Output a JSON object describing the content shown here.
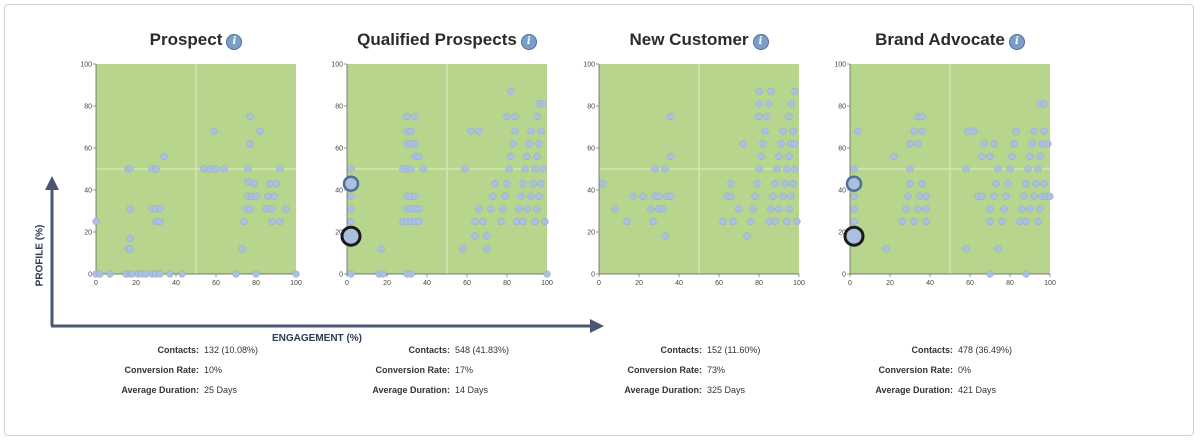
{
  "x_axis_title": "ENGAGEMENT (%)",
  "y_axis_title": "PROFILE (%)",
  "stat_labels": {
    "contacts": "Contacts:",
    "conversion": "Conversion Rate:",
    "duration": "Average Duration:"
  },
  "colors": {
    "plot_bg": "#b7d58c",
    "point": "#a9c1df",
    "point_stroke": "#8fa8c8",
    "arrow": "#4b5671",
    "info": "#7a9ec7"
  },
  "chart_data": [
    {
      "type": "scatter",
      "title": "Prospect",
      "xlim": [
        0,
        100
      ],
      "ylim": [
        0,
        100
      ],
      "xticks": [
        0,
        20,
        40,
        60,
        80,
        100
      ],
      "yticks": [
        0,
        20,
        40,
        60,
        80,
        100
      ],
      "stats": {
        "contacts": "132 (10.08%)",
        "conversion": "10%",
        "duration": "25 Days"
      },
      "points": [
        [
          0,
          25
        ],
        [
          0,
          0
        ],
        [
          2,
          0
        ],
        [
          7,
          0
        ],
        [
          15,
          0
        ],
        [
          16,
          50
        ],
        [
          17,
          50
        ],
        [
          16,
          12
        ],
        [
          17,
          12
        ],
        [
          17,
          17
        ],
        [
          17,
          31
        ],
        [
          15,
          0
        ],
        [
          17,
          0
        ],
        [
          18,
          0
        ],
        [
          21,
          0
        ],
        [
          23,
          0
        ],
        [
          25,
          0
        ],
        [
          28,
          0
        ],
        [
          30,
          0
        ],
        [
          32,
          0
        ],
        [
          28,
          31
        ],
        [
          30,
          31
        ],
        [
          32,
          31
        ],
        [
          30,
          25
        ],
        [
          32,
          25
        ],
        [
          28,
          50
        ],
        [
          30,
          50
        ],
        [
          34,
          56
        ],
        [
          37,
          0
        ],
        [
          43,
          0
        ],
        [
          54,
          50
        ],
        [
          57,
          50
        ],
        [
          60,
          50
        ],
        [
          64,
          50
        ],
        [
          59,
          68
        ],
        [
          73,
          12
        ],
        [
          74,
          25
        ],
        [
          75,
          31
        ],
        [
          76,
          37
        ],
        [
          77,
          31
        ],
        [
          78,
          37
        ],
        [
          79,
          43
        ],
        [
          80,
          37
        ],
        [
          76,
          44
        ],
        [
          76,
          50
        ],
        [
          77,
          62
        ],
        [
          77,
          75
        ],
        [
          80,
          0
        ],
        [
          82,
          68
        ],
        [
          85,
          31
        ],
        [
          86,
          37
        ],
        [
          87,
          43
        ],
        [
          88,
          25
        ],
        [
          88,
          31
        ],
        [
          89,
          37
        ],
        [
          90,
          43
        ],
        [
          92,
          25
        ],
        [
          92,
          50
        ],
        [
          95,
          31
        ],
        [
          100,
          0
        ],
        [
          70,
          0
        ]
      ]
    },
    {
      "type": "scatter",
      "title": "Qualified Prospects",
      "xlim": [
        0,
        100
      ],
      "ylim": [
        0,
        100
      ],
      "xticks": [
        0,
        20,
        40,
        60,
        80,
        100
      ],
      "yticks": [
        0,
        20,
        40,
        60,
        80,
        100
      ],
      "stats": {
        "contacts": "548 (41.83%)",
        "conversion": "17%",
        "duration": "14 Days"
      },
      "highlight": [
        {
          "x": 2,
          "y": 43,
          "r": 7
        },
        {
          "x": 2,
          "y": 18,
          "r": 9
        }
      ],
      "points": [
        [
          2,
          50
        ],
        [
          2,
          37
        ],
        [
          2,
          31
        ],
        [
          2,
          25
        ],
        [
          4,
          18
        ],
        [
          2,
          0
        ],
        [
          16,
          0
        ],
        [
          18,
          0
        ],
        [
          30,
          0
        ],
        [
          32,
          0
        ],
        [
          17,
          12
        ],
        [
          28,
          25
        ],
        [
          30,
          25
        ],
        [
          32,
          25
        ],
        [
          34,
          25
        ],
        [
          36,
          25
        ],
        [
          30,
          31
        ],
        [
          32,
          31
        ],
        [
          34,
          31
        ],
        [
          36,
          31
        ],
        [
          30,
          37
        ],
        [
          32,
          37
        ],
        [
          34,
          37
        ],
        [
          28,
          50
        ],
        [
          30,
          50
        ],
        [
          32,
          50
        ],
        [
          34,
          56
        ],
        [
          36,
          56
        ],
        [
          38,
          50
        ],
        [
          30,
          62
        ],
        [
          32,
          62
        ],
        [
          34,
          62
        ],
        [
          30,
          68
        ],
        [
          32,
          68
        ],
        [
          30,
          75
        ],
        [
          34,
          75
        ],
        [
          58,
          12
        ],
        [
          59,
          50
        ],
        [
          64,
          18
        ],
        [
          64,
          25
        ],
        [
          66,
          31
        ],
        [
          68,
          25
        ],
        [
          70,
          12
        ],
        [
          70,
          18
        ],
        [
          72,
          31
        ],
        [
          73,
          37
        ],
        [
          74,
          43
        ],
        [
          62,
          68
        ],
        [
          66,
          68
        ],
        [
          77,
          25
        ],
        [
          78,
          31
        ],
        [
          79,
          37
        ],
        [
          80,
          43
        ],
        [
          81,
          50
        ],
        [
          82,
          56
        ],
        [
          83,
          62
        ],
        [
          84,
          68
        ],
        [
          80,
          75
        ],
        [
          82,
          87
        ],
        [
          84,
          75
        ],
        [
          85,
          25
        ],
        [
          86,
          31
        ],
        [
          87,
          37
        ],
        [
          88,
          43
        ],
        [
          89,
          50
        ],
        [
          90,
          56
        ],
        [
          91,
          62
        ],
        [
          92,
          68
        ],
        [
          88,
          25
        ],
        [
          90,
          31
        ],
        [
          92,
          37
        ],
        [
          93,
          43
        ],
        [
          94,
          50
        ],
        [
          95,
          56
        ],
        [
          96,
          62
        ],
        [
          97,
          68
        ],
        [
          94,
          25
        ],
        [
          95,
          31
        ],
        [
          96,
          37
        ],
        [
          97,
          43
        ],
        [
          98,
          50
        ],
        [
          95,
          75
        ],
        [
          96,
          81
        ],
        [
          98,
          81
        ],
        [
          99,
          25
        ],
        [
          100,
          0
        ]
      ]
    },
    {
      "type": "scatter",
      "title": "New Customer",
      "xlim": [
        0,
        100
      ],
      "ylim": [
        0,
        100
      ],
      "xticks": [
        0,
        20,
        40,
        60,
        80,
        100
      ],
      "yticks": [
        0,
        20,
        40,
        60,
        80,
        100
      ],
      "stats": {
        "contacts": "152 (11.60%)",
        "conversion": "73%",
        "duration": "325 Days"
      },
      "points": [
        [
          2,
          43
        ],
        [
          8,
          31
        ],
        [
          14,
          25
        ],
        [
          17,
          37
        ],
        [
          22,
          37
        ],
        [
          26,
          31
        ],
        [
          27,
          25
        ],
        [
          28,
          37
        ],
        [
          30,
          31
        ],
        [
          30,
          37
        ],
        [
          32,
          31
        ],
        [
          33,
          18
        ],
        [
          34,
          37
        ],
        [
          36,
          37
        ],
        [
          28,
          50
        ],
        [
          33,
          50
        ],
        [
          36,
          56
        ],
        [
          36,
          75
        ],
        [
          62,
          25
        ],
        [
          64,
          37
        ],
        [
          66,
          37
        ],
        [
          66,
          43
        ],
        [
          67,
          25
        ],
        [
          70,
          31
        ],
        [
          74,
          18
        ],
        [
          76,
          25
        ],
        [
          77,
          31
        ],
        [
          78,
          37
        ],
        [
          79,
          43
        ],
        [
          80,
          50
        ],
        [
          81,
          56
        ],
        [
          82,
          62
        ],
        [
          83,
          68
        ],
        [
          80,
          75
        ],
        [
          80,
          81
        ],
        [
          80,
          87
        ],
        [
          84,
          75
        ],
        [
          85,
          81
        ],
        [
          86,
          87
        ],
        [
          85,
          25
        ],
        [
          86,
          31
        ],
        [
          87,
          37
        ],
        [
          88,
          43
        ],
        [
          89,
          50
        ],
        [
          90,
          56
        ],
        [
          91,
          62
        ],
        [
          92,
          68
        ],
        [
          88,
          25
        ],
        [
          90,
          31
        ],
        [
          92,
          37
        ],
        [
          93,
          43
        ],
        [
          94,
          50
        ],
        [
          95,
          56
        ],
        [
          96,
          62
        ],
        [
          97,
          68
        ],
        [
          94,
          25
        ],
        [
          95,
          31
        ],
        [
          96,
          37
        ],
        [
          97,
          43
        ],
        [
          98,
          50
        ],
        [
          95,
          75
        ],
        [
          96,
          81
        ],
        [
          98,
          87
        ],
        [
          98,
          62
        ],
        [
          99,
          25
        ],
        [
          72,
          62
        ]
      ]
    },
    {
      "type": "scatter",
      "title": "Brand Advocate",
      "xlim": [
        0,
        100
      ],
      "ylim": [
        0,
        100
      ],
      "xticks": [
        0,
        20,
        40,
        60,
        80,
        100
      ],
      "yticks": [
        0,
        20,
        40,
        60,
        80,
        100
      ],
      "stats": {
        "contacts": "478 (36.49%)",
        "conversion": "0%",
        "duration": "421 Days"
      },
      "highlight": [
        {
          "x": 2,
          "y": 43,
          "r": 7
        },
        {
          "x": 2,
          "y": 18,
          "r": 9
        }
      ],
      "points": [
        [
          2,
          50
        ],
        [
          2,
          37
        ],
        [
          2,
          31
        ],
        [
          2,
          25
        ],
        [
          4,
          68
        ],
        [
          18,
          12
        ],
        [
          22,
          56
        ],
        [
          26,
          25
        ],
        [
          28,
          31
        ],
        [
          29,
          37
        ],
        [
          30,
          43
        ],
        [
          30,
          50
        ],
        [
          30,
          62
        ],
        [
          32,
          25
        ],
        [
          34,
          31
        ],
        [
          35,
          37
        ],
        [
          36,
          43
        ],
        [
          32,
          68
        ],
        [
          34,
          62
        ],
        [
          36,
          68
        ],
        [
          34,
          75
        ],
        [
          36,
          75
        ],
        [
          38,
          25
        ],
        [
          38,
          31
        ],
        [
          38,
          37
        ],
        [
          58,
          12
        ],
        [
          58,
          50
        ],
        [
          59,
          68
        ],
        [
          62,
          68
        ],
        [
          64,
          37
        ],
        [
          66,
          37
        ],
        [
          66,
          56
        ],
        [
          67,
          62
        ],
        [
          70,
          25
        ],
        [
          70,
          31
        ],
        [
          72,
          37
        ],
        [
          73,
          43
        ],
        [
          74,
          50
        ],
        [
          70,
          56
        ],
        [
          72,
          62
        ],
        [
          74,
          12
        ],
        [
          76,
          25
        ],
        [
          77,
          31
        ],
        [
          78,
          37
        ],
        [
          79,
          43
        ],
        [
          80,
          50
        ],
        [
          81,
          56
        ],
        [
          82,
          62
        ],
        [
          83,
          68
        ],
        [
          85,
          25
        ],
        [
          86,
          31
        ],
        [
          87,
          37
        ],
        [
          88,
          43
        ],
        [
          89,
          50
        ],
        [
          90,
          56
        ],
        [
          91,
          62
        ],
        [
          92,
          68
        ],
        [
          88,
          25
        ],
        [
          90,
          31
        ],
        [
          92,
          37
        ],
        [
          93,
          43
        ],
        [
          94,
          50
        ],
        [
          95,
          56
        ],
        [
          96,
          62
        ],
        [
          97,
          68
        ],
        [
          94,
          25
        ],
        [
          95,
          31
        ],
        [
          96,
          37
        ],
        [
          97,
          43
        ],
        [
          98,
          37
        ],
        [
          99,
          62
        ],
        [
          100,
          37
        ],
        [
          95,
          81
        ],
        [
          97,
          81
        ],
        [
          70,
          0
        ],
        [
          88,
          0
        ]
      ]
    }
  ]
}
